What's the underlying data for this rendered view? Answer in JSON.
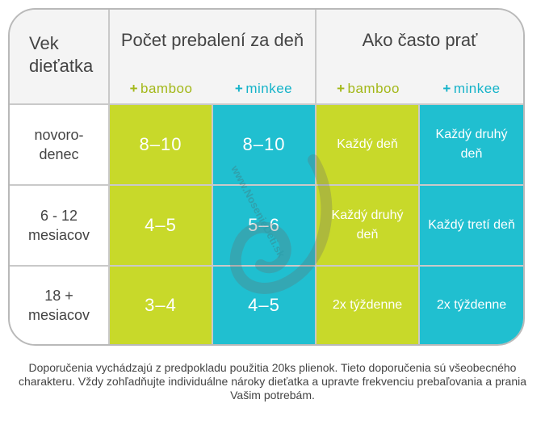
{
  "header": {
    "age_label": "Vek dieťatka",
    "changes_title": "Počet prebalení za deň",
    "wash_title": "Ako často prať",
    "brands": [
      "bamboo",
      "minkee",
      "bamboo",
      "minkee"
    ]
  },
  "rows": [
    {
      "age": "novoro-denec",
      "changes_bamboo": "8–10",
      "changes_minkee": "8–10",
      "wash_bamboo": "Každý deň",
      "wash_minkee": "Každý druhý deň"
    },
    {
      "age": "6 - 12 mesiacov",
      "changes_bamboo": "4–5",
      "changes_minkee": "5–6",
      "wash_bamboo": "Každý druhý deň",
      "wash_minkee": "Každý tretí deň"
    },
    {
      "age": "18 + mesiacov",
      "changes_bamboo": "3–4",
      "changes_minkee": "4–5",
      "wash_bamboo": "2x týždenne",
      "wash_minkee": "2x týždenne"
    }
  ],
  "watermark": "www.NosenieDeti.sk",
  "footer": "Doporučenia vychádzajú z predpokladu použitia 20ks plienok. Tieto doporučenia sú všeobecného charakteru. Vždy zohľadňujte individuálne nároky dieťatka a upravte frekvenciu prebaľovania a prania Vašim potrebám.",
  "colors": {
    "bamboo": "#c8d92a",
    "minkee": "#20bfd0"
  }
}
